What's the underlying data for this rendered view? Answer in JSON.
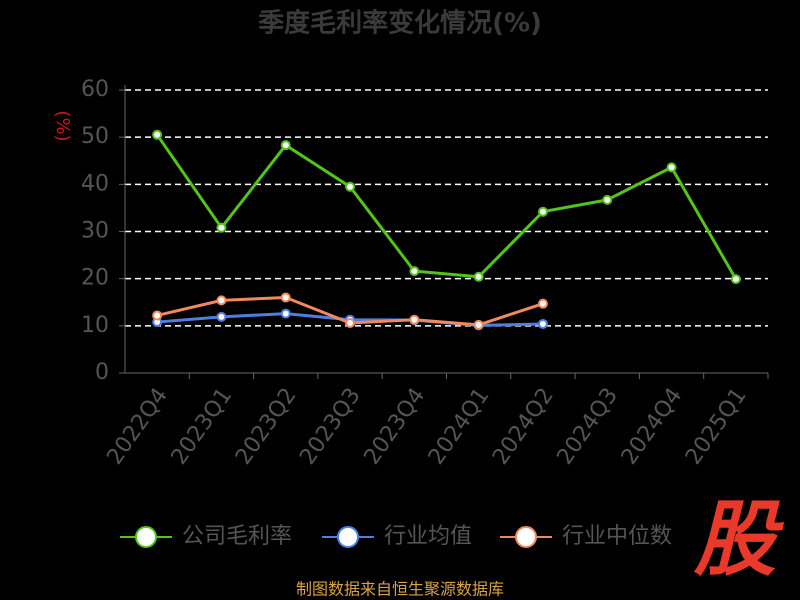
{
  "chart_data": {
    "type": "line",
    "title": "季度毛利率变化情况(%)",
    "y_label": "(%)",
    "categories": [
      "2022Q4",
      "2023Q1",
      "2023Q2",
      "2023Q3",
      "2023Q4",
      "2024Q1",
      "2024Q2",
      "2024Q3",
      "2024Q4",
      "2025Q1"
    ],
    "series": [
      {
        "name": "公司毛利率",
        "color": "#52c41a",
        "values": [
          50.5,
          30.8,
          48.3,
          39.5,
          21.6,
          20.4,
          34.2,
          36.7,
          43.6,
          19.9
        ]
      },
      {
        "name": "行业均值",
        "color": "#4e7fe0",
        "values": [
          10.8,
          11.9,
          12.6,
          11.3,
          11.2,
          10.1,
          10.4,
          null,
          null,
          null
        ]
      },
      {
        "name": "行业中位数",
        "color": "#f08a5d",
        "values": [
          12.2,
          15.4,
          16.0,
          10.6,
          11.3,
          10.2,
          14.7,
          null,
          null,
          null
        ]
      }
    ],
    "ylim": [
      0,
      60
    ],
    "yticks": [
      0,
      10,
      20,
      30,
      40,
      50,
      60
    ],
    "grid": true,
    "legend": "bottom",
    "source": "制图数据来自恒生聚源数据库",
    "watermark": "股"
  }
}
